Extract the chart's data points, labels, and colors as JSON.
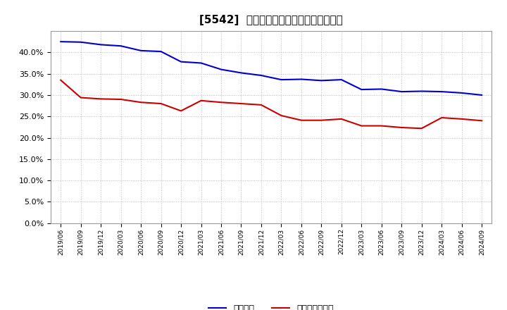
{
  "title": "[5542]  固定比率、固定長期適合率の推移",
  "ylim": [
    0.0,
    0.45
  ],
  "yticks": [
    0.0,
    0.05,
    0.1,
    0.15,
    0.2,
    0.25,
    0.3,
    0.35,
    0.4
  ],
  "background_color": "#ffffff",
  "plot_bg_color": "#ffffff",
  "grid_color": "#bbbbbb",
  "fixed_ratio_color": "#0000cc",
  "long_term_ratio_color": "#cc0000",
  "legend_fixed": "固定比率",
  "legend_long_term": "固定長期適合率",
  "dates": [
    "2019/06",
    "2019/09",
    "2019/12",
    "2020/03",
    "2020/06",
    "2020/09",
    "2020/12",
    "2021/03",
    "2021/06",
    "2021/09",
    "2021/12",
    "2022/03",
    "2022/06",
    "2022/09",
    "2022/12",
    "2023/03",
    "2023/06",
    "2023/09",
    "2023/12",
    "2024/03",
    "2024/06",
    "2024/09"
  ],
  "fixed_ratio": [
    0.425,
    0.424,
    0.418,
    0.415,
    0.404,
    0.402,
    0.378,
    0.375,
    0.36,
    0.352,
    0.346,
    0.336,
    0.337,
    0.334,
    0.336,
    0.313,
    0.314,
    0.308,
    0.309,
    0.308,
    0.305,
    0.3
  ],
  "long_term_ratio": [
    0.335,
    0.294,
    0.291,
    0.29,
    0.283,
    0.28,
    0.263,
    0.287,
    0.283,
    0.28,
    0.277,
    0.252,
    0.241,
    0.241,
    0.244,
    0.228,
    0.228,
    0.224,
    0.222,
    0.247,
    0.244,
    0.24
  ]
}
